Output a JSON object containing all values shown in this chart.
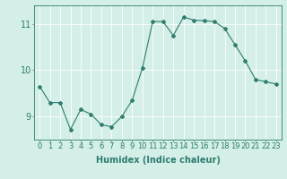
{
  "x": [
    0,
    1,
    2,
    3,
    4,
    5,
    6,
    7,
    8,
    9,
    10,
    11,
    12,
    13,
    14,
    15,
    16,
    17,
    18,
    19,
    20,
    21,
    22,
    23
  ],
  "y": [
    9.65,
    9.3,
    9.3,
    8.72,
    9.15,
    9.05,
    8.82,
    8.78,
    9.0,
    9.35,
    10.05,
    11.05,
    11.05,
    10.75,
    11.15,
    11.08,
    11.07,
    11.05,
    10.9,
    10.55,
    10.2,
    9.8,
    9.75,
    9.7
  ],
  "line_color": "#2e7d6e",
  "marker": "D",
  "marker_size": 2,
  "bg_color": "#d4eee8",
  "grid_color": "#ffffff",
  "xlabel": "Humidex (Indice chaleur)",
  "xlim": [
    -0.5,
    23.5
  ],
  "ylim": [
    8.5,
    11.4
  ],
  "yticks": [
    9,
    10,
    11
  ],
  "xticks": [
    0,
    1,
    2,
    3,
    4,
    5,
    6,
    7,
    8,
    9,
    10,
    11,
    12,
    13,
    14,
    15,
    16,
    17,
    18,
    19,
    20,
    21,
    22,
    23
  ],
  "tick_color": "#2e7d6e",
  "label_fontsize": 7,
  "tick_fontsize": 6
}
